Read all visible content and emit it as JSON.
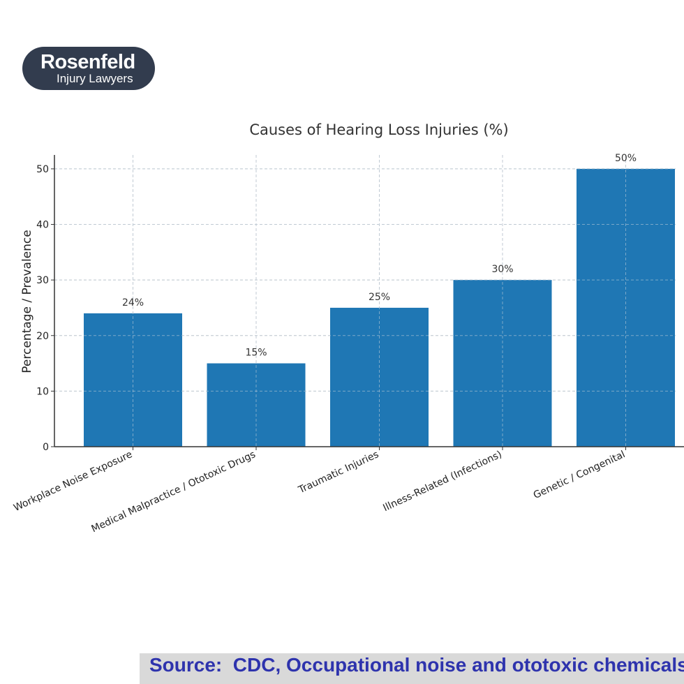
{
  "logo": {
    "brand": "Rosenfeld",
    "sub": "Injury Lawyers"
  },
  "chart_data": {
    "type": "bar",
    "title": "Causes of Hearing Loss Injuries (%)",
    "xlabel": "",
    "ylabel": "Percentage / Prevalence",
    "categories": [
      "Workplace Noise Exposure",
      "Medical Malpractice / Ototoxic Drugs",
      "Traumatic Injuries",
      "Illness-Related (Infections)",
      "Genetic / Congenital"
    ],
    "values": [
      24,
      15,
      25,
      30,
      50
    ],
    "data_labels": [
      "24%",
      "15%",
      "25%",
      "30%",
      "50%"
    ],
    "ylim": [
      0,
      50
    ],
    "yticks": [
      0,
      10,
      20,
      30,
      40,
      50
    ],
    "grid": true,
    "bar_color": "#1f77b4"
  },
  "source": {
    "text": "Source:  CDC, Occupational noise and ototoxic chemicals"
  }
}
